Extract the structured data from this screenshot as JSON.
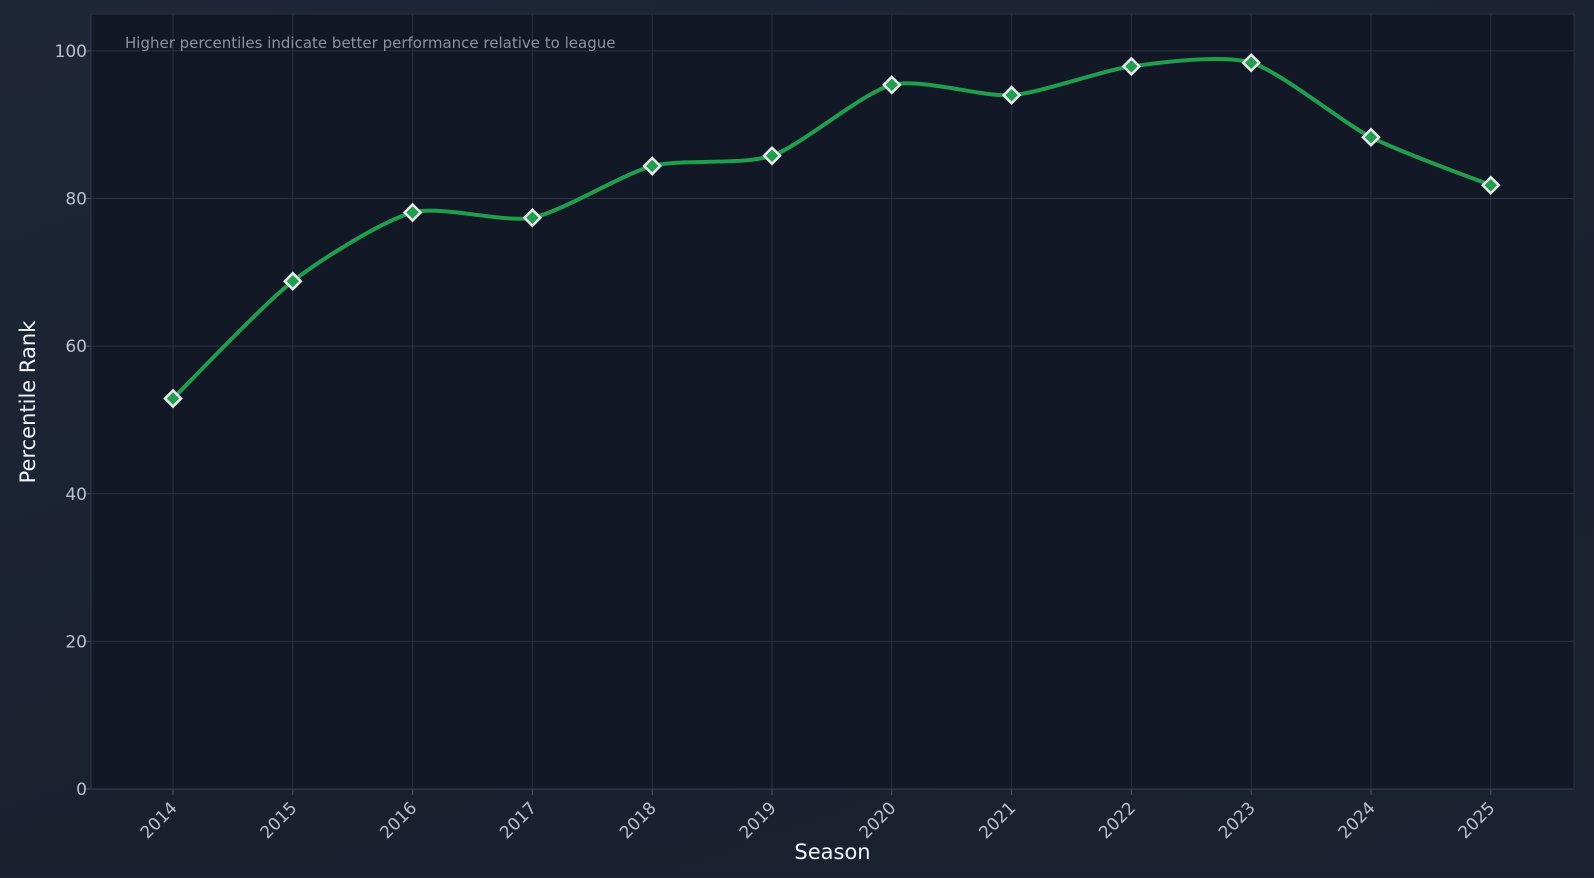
{
  "chart_data": {
    "type": "line",
    "title": "",
    "xlabel": "Season",
    "ylabel": "Percentile Rank",
    "annotation": "Higher percentiles indicate better performance relative to league",
    "x": [
      "2014",
      "2015",
      "2016",
      "2017",
      "2018",
      "2019",
      "2020",
      "2021",
      "2022",
      "2023",
      "2024",
      "2025"
    ],
    "series": [
      {
        "values": [
          52.9,
          68.8,
          78.1,
          77.4,
          84.4,
          85.8,
          95.4,
          94.0,
          97.9,
          98.4,
          88.3,
          81.8
        ],
        "color": "#1f9e4e",
        "marker": "diamond",
        "marker_fill": "#1f9e4e",
        "marker_edge": "#e6eae8"
      }
    ],
    "ylim": [
      0,
      105
    ],
    "yticks": [
      0,
      20,
      40,
      60,
      80,
      100
    ],
    "grid": true,
    "colors": {
      "plot_background": "#121826",
      "grid": "#2a3242",
      "axis": "#4a5364"
    }
  }
}
